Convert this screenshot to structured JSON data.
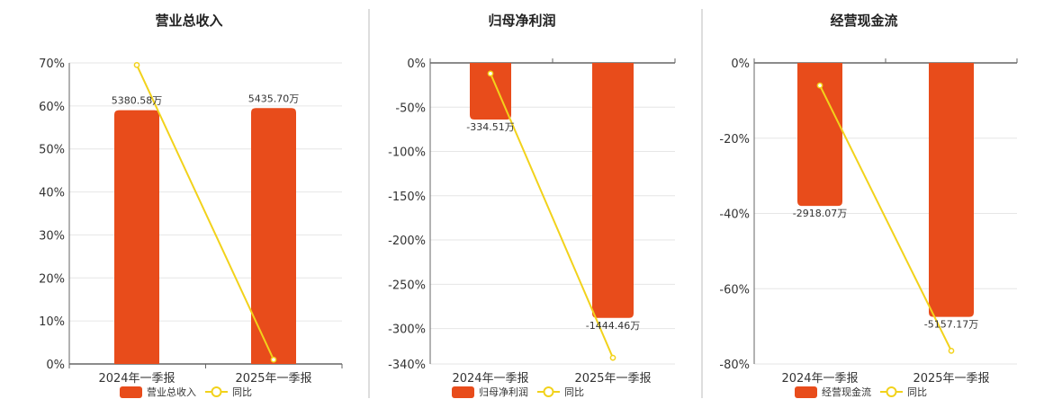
{
  "colors": {
    "bar": "#e84c1b",
    "line": "#f2d21b",
    "grid": "#e6e6e6",
    "axis": "#666666",
    "divider": "#bbbbbb"
  },
  "chart_data": [
    {
      "type": "bar",
      "title": "营业总收入",
      "categories": [
        "2024年一季报",
        "2025年一季报"
      ],
      "series": [
        {
          "name": "营业总收入",
          "type": "bar",
          "values": [
            59,
            59.5
          ],
          "labels": [
            "5380.58万",
            "5435.70万"
          ]
        },
        {
          "name": "同比",
          "type": "line",
          "values": [
            69.5,
            1.0
          ]
        }
      ],
      "ylim": [
        0,
        70
      ],
      "yticks": [
        0,
        10,
        20,
        30,
        40,
        50,
        60,
        70
      ],
      "ytick_labels": [
        "0%",
        "10%",
        "20%",
        "30%",
        "40%",
        "50%",
        "60%",
        "70%"
      ],
      "legend": "bottom",
      "grid": true
    },
    {
      "type": "bar",
      "title": "归母净利润",
      "categories": [
        "2024年一季报",
        "2025年一季报"
      ],
      "series": [
        {
          "name": "归母净利润",
          "type": "bar",
          "values": [
            -64,
            -288
          ],
          "labels": [
            "-334.51万",
            "-1444.46万"
          ]
        },
        {
          "name": "同比",
          "type": "line",
          "values": [
            -12,
            -333
          ]
        }
      ],
      "ylim": [
        -340,
        0
      ],
      "yticks": [
        0,
        -50,
        -100,
        -150,
        -200,
        -250,
        -300,
        -340
      ],
      "ytick_labels": [
        "0%",
        "-50%",
        "-100%",
        "-150%",
        "-200%",
        "-250%",
        "-300%",
        "-340%"
      ],
      "legend": "bottom",
      "grid": true
    },
    {
      "type": "bar",
      "title": "经营现金流",
      "categories": [
        "2024年一季报",
        "2025年一季报"
      ],
      "series": [
        {
          "name": "经营现金流",
          "type": "bar",
          "values": [
            -38,
            -67.5
          ],
          "labels": [
            "-2918.07万",
            "-5157.17万"
          ]
        },
        {
          "name": "同比",
          "type": "line",
          "values": [
            -6,
            -76.5
          ]
        }
      ],
      "ylim": [
        -80,
        0
      ],
      "yticks": [
        0,
        -20,
        -40,
        -60,
        -80
      ],
      "ytick_labels": [
        "0%",
        "-20%",
        "-40%",
        "-60%",
        "-80%"
      ],
      "legend": "bottom",
      "grid": true
    }
  ]
}
